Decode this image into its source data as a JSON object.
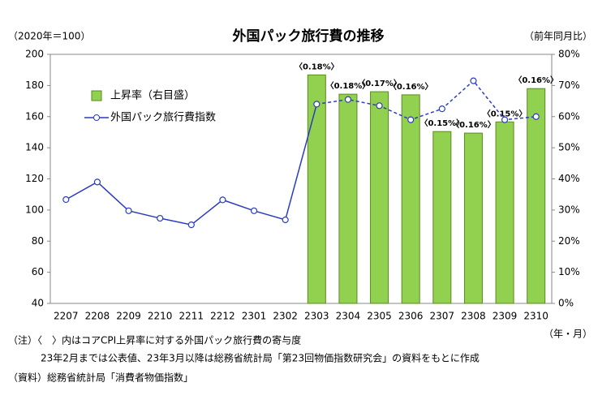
{
  "chart_data": {
    "type": "bar_line",
    "title": "外国パック旅行費の推移",
    "y_unit_label": "（2020年＝100）",
    "y2_unit_label": "（前年同月比）",
    "x_unit_label": "（年・月）",
    "notes": [
      "（注）〈　〉内はコアCPI上昇率に対する外国パック旅行費の寄与度",
      "23年2月までは公表値、23年3月以降は総務省統計局「第23回物価指数研究会」の資料をもとに作成",
      "（資料）総務省統計局「消費者物価指数」"
    ],
    "categories": [
      "2207",
      "2208",
      "2209",
      "2210",
      "2211",
      "2212",
      "2301",
      "2302",
      "2303",
      "2304",
      "2305",
      "2306",
      "2307",
      "2308",
      "2309",
      "2310"
    ],
    "series": [
      {
        "name": "上昇率（右目盛）",
        "type": "bar",
        "axis": "y2",
        "color": "#92d050",
        "values": [
          null,
          null,
          null,
          null,
          null,
          null,
          null,
          null,
          73.4,
          67.2,
          68,
          67,
          55.2,
          54.7,
          58.3,
          69
        ],
        "labels": [
          null,
          null,
          null,
          null,
          null,
          null,
          null,
          null,
          "〈0.18%〉",
          "〈0.18%〉",
          "〈0.17%〉",
          "〈0.16%〉",
          "〈0.15%〉",
          "〈0.16%〉",
          "〈0.15%〉",
          "〈0.16%〉"
        ]
      },
      {
        "name": "外国パック旅行費指数",
        "type": "line",
        "color": "#2a3cbf",
        "dashed_from": "2303",
        "values": [
          106.7,
          118,
          99.5,
          94.7,
          90.5,
          106.5,
          99.5,
          93.7,
          168,
          171,
          167,
          158,
          165,
          183,
          158,
          160
        ]
      }
    ],
    "ylim": [
      40,
      200
    ],
    "yticks": [
      40,
      60,
      80,
      100,
      120,
      140,
      160,
      180,
      200
    ],
    "y2lim": [
      0,
      80
    ],
    "y2ticks": [
      {
        "value": 0,
        "label": "0%"
      },
      {
        "value": 10,
        "label": "10%"
      },
      {
        "value": 20,
        "label": "20%"
      },
      {
        "value": 30,
        "label": "30%"
      },
      {
        "value": 40,
        "label": "40%"
      },
      {
        "value": 50,
        "label": "50%"
      },
      {
        "value": 60,
        "label": "60%"
      },
      {
        "value": 70,
        "label": "70%"
      },
      {
        "value": 80,
        "label": "80%"
      }
    ],
    "grid": false
  }
}
